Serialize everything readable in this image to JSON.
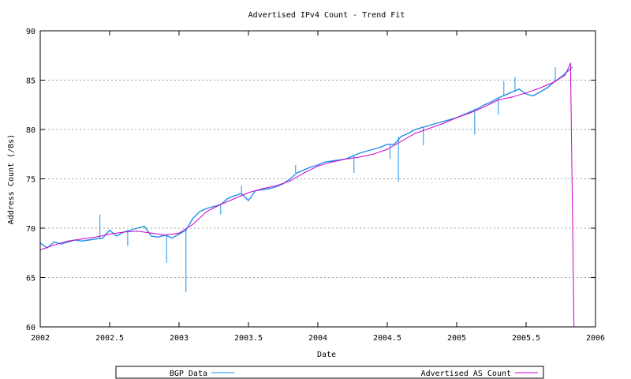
{
  "chart_data": {
    "type": "line",
    "title": "Advertised IPv4 Count - Trend Fit",
    "xlabel": "Date",
    "ylabel": "Address Count (/8s)",
    "xlim": [
      2002,
      2006
    ],
    "ylim": [
      60,
      90
    ],
    "x_ticks": [
      2002,
      2002.5,
      2003,
      2003.5,
      2004,
      2004.5,
      2005,
      2005.5,
      2006
    ],
    "y_ticks": [
      60,
      65,
      70,
      75,
      80,
      85,
      90
    ],
    "y_grid": true,
    "x_grid": false,
    "legend_placement": "bottom",
    "series": [
      {
        "name": "BGP Data",
        "color": "#1e90e8",
        "x": [
          2002.0,
          2002.05,
          2002.1,
          2002.15,
          2002.2,
          2002.25,
          2002.3,
          2002.35,
          2002.4,
          2002.45,
          2002.5,
          2002.55,
          2002.6,
          2002.65,
          2002.7,
          2002.75,
          2002.8,
          2002.85,
          2002.9,
          2002.95,
          2003.0,
          2003.05,
          2003.1,
          2003.15,
          2003.2,
          2003.25,
          2003.3,
          2003.35,
          2003.4,
          2003.45,
          2003.5,
          2003.55,
          2003.6,
          2003.65,
          2003.7,
          2003.75,
          2003.8,
          2003.85,
          2003.9,
          2003.95,
          2004.0,
          2004.05,
          2004.1,
          2004.15,
          2004.2,
          2004.25,
          2004.3,
          2004.35,
          2004.4,
          2004.45,
          2004.5,
          2004.55,
          2004.6,
          2004.65,
          2004.7,
          2004.75,
          2004.8,
          2004.85,
          2004.9,
          2004.95,
          2005.0,
          2005.05,
          2005.1,
          2005.15,
          2005.2,
          2005.25,
          2005.3,
          2005.35,
          2005.4,
          2005.45,
          2005.5,
          2005.55,
          2005.6,
          2005.65,
          2005.7,
          2005.75,
          2005.8,
          2005.83
        ],
        "y": [
          68.5,
          68.0,
          68.6,
          68.4,
          68.6,
          68.8,
          68.7,
          68.8,
          68.9,
          69.0,
          69.8,
          69.2,
          69.6,
          69.8,
          70.0,
          70.2,
          69.2,
          69.1,
          69.3,
          69.0,
          69.4,
          69.8,
          71.0,
          71.7,
          72.0,
          72.2,
          72.4,
          73.0,
          73.3,
          73.5,
          72.8,
          73.8,
          73.9,
          74.0,
          74.2,
          74.5,
          75.0,
          75.6,
          75.9,
          76.2,
          76.4,
          76.7,
          76.8,
          76.9,
          77.0,
          77.3,
          77.6,
          77.8,
          78.0,
          78.2,
          78.5,
          78.5,
          79.3,
          79.6,
          80.0,
          80.2,
          80.4,
          80.6,
          80.8,
          81.0,
          81.2,
          81.5,
          81.8,
          82.1,
          82.5,
          82.8,
          83.2,
          83.5,
          83.8,
          84.1,
          83.6,
          83.4,
          83.8,
          84.2,
          84.8,
          85.3,
          85.9,
          86.3
        ],
        "spikes": [
          {
            "x": 2003.05,
            "y": 63.5
          },
          {
            "x": 2002.91,
            "y": 66.5
          },
          {
            "x": 2004.58,
            "y": 74.7
          },
          {
            "x": 2002.43,
            "y": 71.4
          },
          {
            "x": 2002.63,
            "y": 68.2
          },
          {
            "x": 2003.3,
            "y": 71.4
          },
          {
            "x": 2003.45,
            "y": 74.3
          },
          {
            "x": 2003.84,
            "y": 76.4
          },
          {
            "x": 2004.26,
            "y": 75.6
          },
          {
            "x": 2004.52,
            "y": 77.0
          },
          {
            "x": 2004.76,
            "y": 78.4
          },
          {
            "x": 2005.13,
            "y": 79.5
          },
          {
            "x": 2005.34,
            "y": 84.9
          },
          {
            "x": 2005.42,
            "y": 85.3
          },
          {
            "x": 2005.3,
            "y": 81.5
          },
          {
            "x": 2005.71,
            "y": 86.3
          }
        ]
      },
      {
        "name": "Advertised AS Count",
        "color": "#cc00cc",
        "x": [
          2002.0,
          2002.1,
          2002.2,
          2002.3,
          2002.4,
          2002.5,
          2002.6,
          2002.7,
          2002.8,
          2002.9,
          2003.0,
          2003.1,
          2003.2,
          2003.3,
          2003.4,
          2003.5,
          2003.6,
          2003.7,
          2003.8,
          2003.9,
          2004.0,
          2004.1,
          2004.2,
          2004.3,
          2004.4,
          2004.5,
          2004.6,
          2004.7,
          2004.8,
          2004.9,
          2005.0,
          2005.1,
          2005.2,
          2005.3,
          2005.4,
          2005.5,
          2005.6,
          2005.7,
          2005.78,
          2005.82,
          2005.845
        ],
        "y": [
          67.8,
          68.3,
          68.7,
          68.9,
          69.1,
          69.4,
          69.6,
          69.7,
          69.5,
          69.3,
          69.5,
          70.4,
          71.7,
          72.4,
          73.0,
          73.6,
          74.0,
          74.3,
          74.8,
          75.6,
          76.3,
          76.7,
          77.0,
          77.2,
          77.5,
          78.0,
          78.8,
          79.6,
          80.1,
          80.6,
          81.2,
          81.7,
          82.3,
          83.0,
          83.3,
          83.7,
          84.2,
          84.8,
          85.5,
          86.7,
          60.0
        ]
      }
    ]
  }
}
